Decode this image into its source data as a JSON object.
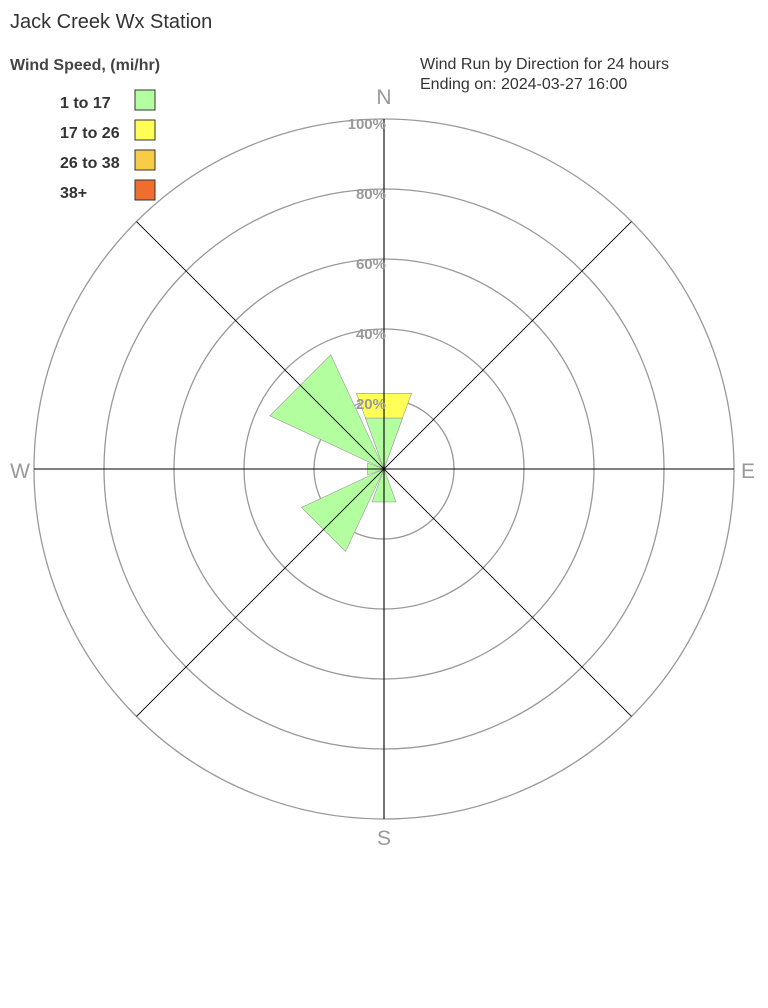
{
  "chart_data": {
    "type": "wind-rose",
    "title": "Jack Creek Wx Station",
    "subtitle_line1": "Wind Run by Direction for 24 hours",
    "subtitle_line2": "Ending on: 2024-03-27 16:00",
    "legend_title": "Wind Speed, (mi/hr)",
    "legend_placement": "top-left",
    "bins": [
      {
        "label": "1 to 17",
        "color": "#b3ff9f"
      },
      {
        "label": "17 to 26",
        "color": "#ffff55"
      },
      {
        "label": "26 to 38",
        "color": "#f8cd45"
      },
      {
        "label": "38+",
        "color": "#ef6e2e"
      }
    ],
    "radial_ticks": [
      "20%",
      "40%",
      "60%",
      "80%",
      "100%"
    ],
    "radial_max": 100,
    "directions_labels": [
      "N",
      "E",
      "S",
      "W"
    ],
    "petals": [
      {
        "direction": "N",
        "angle": 0,
        "values": [
          15.5,
          7.5,
          0,
          0
        ]
      },
      {
        "direction": "NW",
        "angle": 315,
        "values": [
          36,
          0,
          0,
          0
        ]
      },
      {
        "direction": "W",
        "angle": 270,
        "values": [
          5,
          0,
          0,
          0
        ]
      },
      {
        "direction": "SW",
        "angle": 225,
        "values": [
          26,
          0,
          0,
          0
        ]
      },
      {
        "direction": "S",
        "angle": 180,
        "values": [
          10,
          0,
          0,
          0
        ]
      }
    ]
  }
}
